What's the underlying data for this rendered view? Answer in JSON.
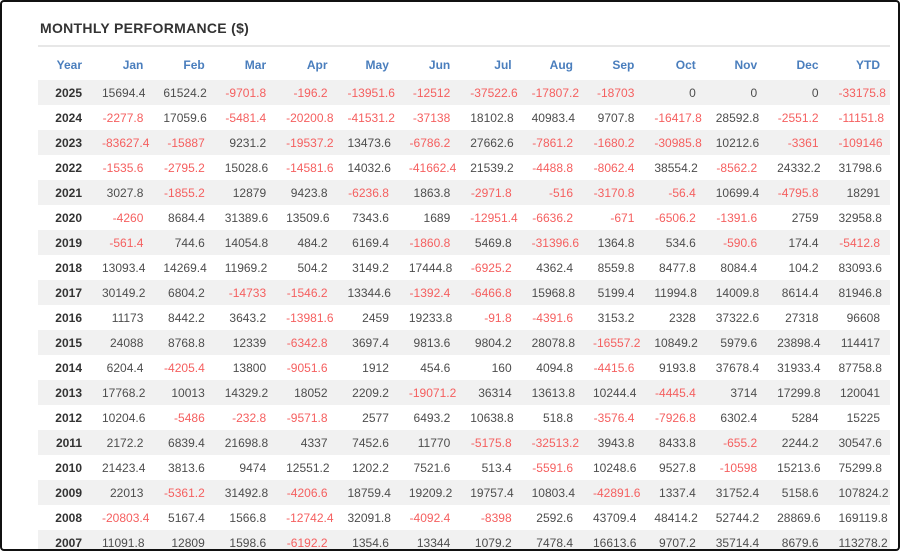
{
  "page": {
    "title": "MONTHLY PERFORMANCE ($)"
  },
  "colors": {
    "title_text": "#333333",
    "header_text": "#4a7ebd",
    "positive_value": "#4d4d4d",
    "negative_value": "#f55f5f",
    "row_stripe": "#f1f1f1",
    "frame_border": "#111111"
  },
  "chart_data": {
    "type": "table",
    "title": "MONTHLY PERFORMANCE ($)",
    "columns": [
      "Year",
      "Jan",
      "Feb",
      "Mar",
      "Apr",
      "May",
      "Jun",
      "Jul",
      "Aug",
      "Sep",
      "Oct",
      "Nov",
      "Dec",
      "YTD"
    ],
    "layout": "rows alternate shaded/white starting shaded; negative values shown in red; all cells right-aligned",
    "rows": [
      {
        "year": "2025",
        "values": [
          15694.4,
          61524.2,
          -9701.8,
          -196.2,
          -13951.6,
          -12512,
          -37522.6,
          -17807.2,
          -18703,
          0,
          0,
          0,
          -33175.8
        ]
      },
      {
        "year": "2024",
        "values": [
          -2277.8,
          17059.6,
          -5481.4,
          -20200.8,
          -41531.2,
          -37138,
          18102.8,
          40983.4,
          9707.8,
          -16417.8,
          28592.8,
          -2551.2,
          -11151.8
        ]
      },
      {
        "year": "2023",
        "values": [
          -83627.4,
          -15887,
          9231.2,
          -19537.2,
          13473.6,
          -6786.2,
          27662.6,
          -7861.2,
          -1680.2,
          -30985.8,
          10212.6,
          -3361,
          -109146
        ]
      },
      {
        "year": "2022",
        "values": [
          -1535.6,
          -2795.2,
          15028.6,
          -14581.6,
          14032.6,
          -41662.4,
          21539.2,
          -4488.8,
          -8062.4,
          38554.2,
          -8562.2,
          24332.2,
          31798.6
        ]
      },
      {
        "year": "2021",
        "values": [
          3027.8,
          -1855.2,
          12879,
          9423.8,
          -6236.8,
          1863.8,
          -2971.8,
          -516,
          -3170.8,
          -56.4,
          10699.4,
          -4795.8,
          18291
        ]
      },
      {
        "year": "2020",
        "values": [
          -4260,
          8684.4,
          31389.6,
          13509.6,
          7343.6,
          1689,
          -12951.4,
          -6636.2,
          -671,
          -6506.2,
          -1391.6,
          2759,
          32958.8
        ]
      },
      {
        "year": "2019",
        "values": [
          -561.4,
          744.6,
          14054.8,
          484.2,
          6169.4,
          -1860.8,
          5469.8,
          -31396.6,
          1364.8,
          534.6,
          -590.6,
          174.4,
          -5412.8
        ]
      },
      {
        "year": "2018",
        "values": [
          13093.4,
          14269.4,
          11969.2,
          504.2,
          3149.2,
          17444.8,
          -6925.2,
          4362.4,
          8559.8,
          8477.8,
          8084.4,
          104.2,
          83093.6
        ]
      },
      {
        "year": "2017",
        "values": [
          30149.2,
          6804.2,
          -14733,
          -1546.2,
          13344.6,
          -1392.4,
          -6466.8,
          15968.8,
          5199.4,
          11994.8,
          14009.8,
          8614.4,
          81946.8
        ]
      },
      {
        "year": "2016",
        "values": [
          11173,
          8442.2,
          3643.2,
          -13981.6,
          2459,
          19233.8,
          -91.8,
          -4391.6,
          3153.2,
          2328,
          37322.6,
          27318,
          96608
        ]
      },
      {
        "year": "2015",
        "values": [
          24088,
          8768.8,
          12339,
          -6342.8,
          3697.4,
          9813.6,
          9804.2,
          28078.8,
          -16557.2,
          10849.2,
          5979.6,
          23898.4,
          114417
        ]
      },
      {
        "year": "2014",
        "values": [
          6204.4,
          -4205.4,
          13800,
          -9051.6,
          1912,
          454.6,
          160,
          4094.8,
          -4415.6,
          9193.8,
          37678.4,
          31933.4,
          87758.8
        ]
      },
      {
        "year": "2013",
        "values": [
          17768.2,
          10013,
          14329.2,
          18052,
          2209.2,
          -19071.2,
          36314,
          13613.8,
          10244.4,
          -4445.4,
          3714,
          17299.8,
          120041
        ]
      },
      {
        "year": "2012",
        "values": [
          10204.6,
          -5486,
          -232.8,
          -9571.8,
          2577,
          6493.2,
          10638.8,
          518.8,
          -3576.4,
          -7926.8,
          6302.4,
          5284,
          15225
        ]
      },
      {
        "year": "2011",
        "values": [
          2172.2,
          6839.4,
          21698.8,
          4337,
          7452.6,
          11770,
          -5175.8,
          -32513.2,
          3943.8,
          8433.8,
          -655.2,
          2244.2,
          30547.6
        ]
      },
      {
        "year": "2010",
        "values": [
          21423.4,
          3813.6,
          9474,
          12551.2,
          1202.2,
          7521.6,
          513.4,
          -5591.6,
          10248.6,
          9527.8,
          -10598,
          15213.6,
          75299.8
        ]
      },
      {
        "year": "2009",
        "values": [
          22013,
          -5361.2,
          31492.8,
          -4206.6,
          18759.4,
          19209.2,
          19757.4,
          10803.4,
          -42891.6,
          1337.4,
          31752.4,
          5158.6,
          107824.2
        ]
      },
      {
        "year": "2008",
        "values": [
          -20803.4,
          5167.4,
          1566.8,
          -12742.4,
          32091.8,
          -4092.4,
          -8398,
          2592.6,
          43709.4,
          48414.2,
          52744.2,
          28869.6,
          169119.8
        ]
      },
      {
        "year": "2007",
        "values": [
          11091.8,
          12809,
          1598.6,
          -6192.2,
          1354.6,
          13344,
          1079.2,
          7478.4,
          16613.6,
          9707.2,
          35714.4,
          8679.6,
          113278.2
        ]
      }
    ]
  }
}
